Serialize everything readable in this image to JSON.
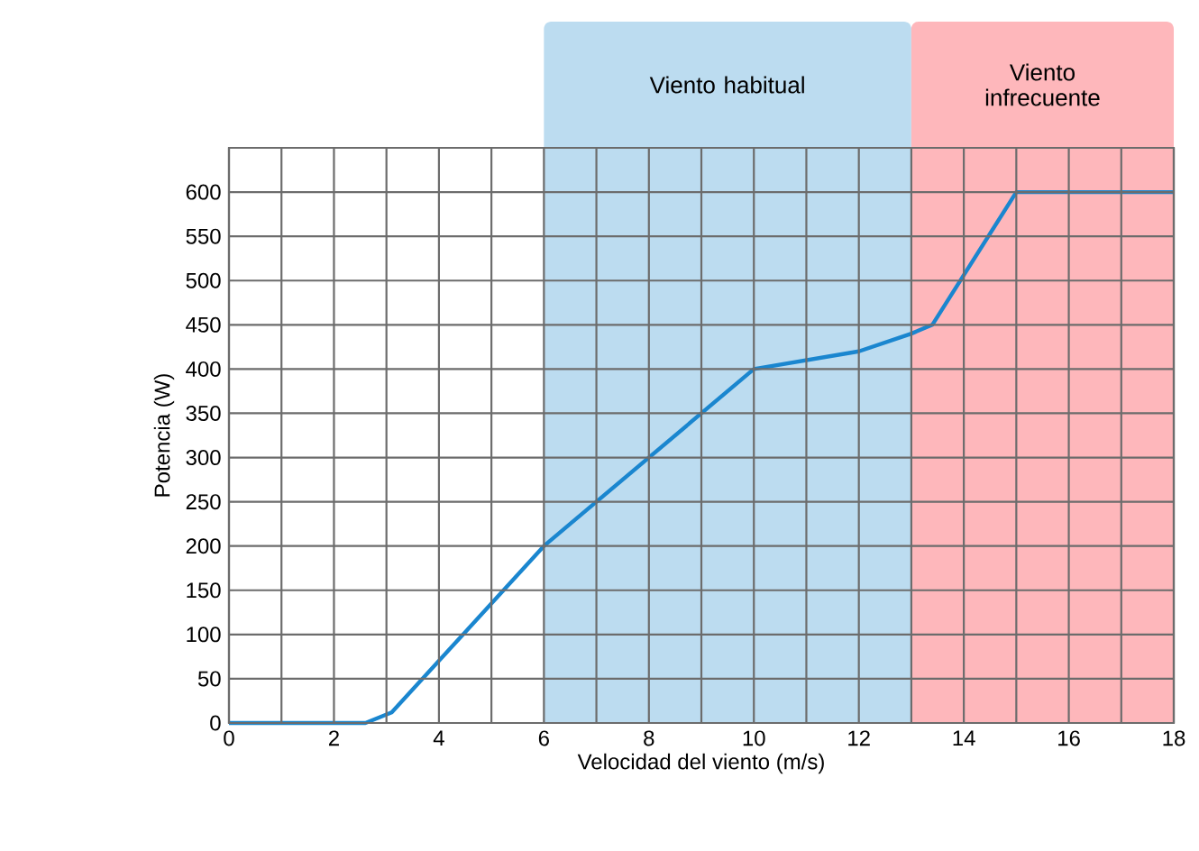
{
  "chart_data": {
    "type": "line",
    "xlabel": "Velocidad del viento (m/s)",
    "ylabel": "Potencia (W)",
    "x": [
      0,
      2.6,
      3.1,
      6,
      10,
      12,
      13,
      13.4,
      15,
      18
    ],
    "values": [
      0,
      0,
      12,
      200,
      400,
      420,
      440,
      450,
      600,
      600
    ],
    "color": "#1a86cf",
    "xlim": [
      0,
      18
    ],
    "ylim": [
      0,
      650
    ],
    "xticks": [
      0,
      {
        "value": 1,
        "label": null
      },
      2,
      {
        "value": 3,
        "label": null
      },
      4,
      {
        "value": 5,
        "label": null
      },
      6,
      {
        "value": 7,
        "label": null
      },
      8,
      {
        "value": 9,
        "label": null
      },
      10,
      {
        "value": 11,
        "label": null
      },
      12,
      {
        "value": 13,
        "label": null
      },
      14,
      {
        "value": 15,
        "label": null
      },
      16,
      {
        "value": 17,
        "label": null
      },
      18
    ],
    "yticks": [
      0,
      50,
      100,
      150,
      200,
      250,
      300,
      350,
      400,
      450,
      500,
      550,
      600,
      {
        "value": 650,
        "label": null
      }
    ],
    "bands": [
      {
        "axis": "x",
        "from": 6,
        "to": 13,
        "label": "Viento habitual",
        "color": "#bcdcf0"
      },
      {
        "axis": "x",
        "from": 13,
        "to": 18,
        "label": "Viento infrecuente",
        "color": "#feb7bb"
      }
    ],
    "grid": true,
    "marker": "none",
    "line_style": "solid"
  }
}
